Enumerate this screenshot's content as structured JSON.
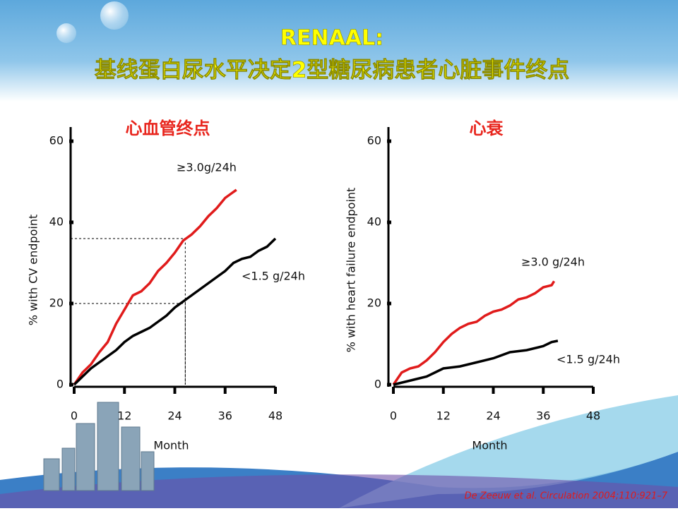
{
  "slide": {
    "title_line1": "RENAAL:",
    "title_line2": "基线蛋白尿水平决定2型糖尿病患者心脏事件终点",
    "citation": "De Zeeuw et al. Circulation 2004;110:921–7"
  },
  "chart_data": [
    {
      "type": "line",
      "title": "心血管终点",
      "x_label": "Month",
      "y_label": "% with CV endpoint",
      "xlim": [
        0,
        48
      ],
      "xticks": [
        0,
        12,
        24,
        36,
        48
      ],
      "ylim": [
        0,
        60
      ],
      "yticks": [
        0,
        20,
        40,
        60
      ],
      "guides": [
        {
          "x": 26.5,
          "y": 36
        },
        {
          "x": 26.5,
          "y": 20
        }
      ],
      "series": [
        {
          "name": "≥3.0g/24h",
          "color": "#e01b1b",
          "x": [
            0,
            2,
            4,
            6,
            8,
            10,
            12,
            14,
            16,
            18,
            20,
            22,
            24,
            26,
            28,
            30,
            32,
            34,
            36,
            38,
            38.7
          ],
          "values": [
            0,
            3,
            5,
            8,
            10.5,
            15,
            18.5,
            22,
            23,
            25,
            28,
            30,
            32.5,
            35.5,
            37,
            39,
            41.5,
            43.5,
            46,
            47.5,
            48
          ]
        },
        {
          "name": "<1.5 g/24h",
          "color": "#000000",
          "x": [
            0,
            2,
            4,
            6,
            8,
            10,
            12,
            14,
            16,
            18,
            20,
            22,
            24,
            26,
            28,
            30,
            32,
            34,
            36,
            38,
            40,
            42,
            44,
            46,
            48
          ],
          "values": [
            0,
            2,
            4,
            5.5,
            7,
            8.5,
            10.5,
            12,
            13,
            14,
            15.5,
            17,
            19,
            20.5,
            22,
            23.5,
            25,
            26.5,
            28,
            30,
            31,
            31.5,
            33,
            34,
            36
          ]
        }
      ]
    },
    {
      "type": "line",
      "title": "心衰",
      "x_label": "Month",
      "y_label": "% with heart failure endpoint",
      "xlim": [
        0,
        48
      ],
      "xticks": [
        0,
        12,
        24,
        36,
        48
      ],
      "ylim": [
        0,
        60
      ],
      "yticks": [
        0,
        20,
        40,
        60
      ],
      "series": [
        {
          "name": "≥3.0 g/24h",
          "color": "#e01b1b",
          "x": [
            0,
            2,
            4,
            6,
            8,
            10,
            12,
            14,
            16,
            18,
            20,
            22,
            24,
            26,
            28,
            30,
            32,
            34,
            36,
            38,
            38.6
          ],
          "values": [
            0,
            3,
            4,
            4.5,
            6,
            8,
            10.5,
            12.5,
            14,
            15,
            15.5,
            17,
            18,
            18.5,
            19.5,
            21,
            21.5,
            22.5,
            24,
            24.5,
            25.5
          ]
        },
        {
          "name": "<1.5 g/24h",
          "color": "#000000",
          "x": [
            0,
            4,
            8,
            12,
            16,
            20,
            24,
            28,
            32,
            36,
            38,
            39.5
          ],
          "values": [
            0,
            1,
            2,
            4,
            4.5,
            5.5,
            6.5,
            8,
            8.5,
            9.5,
            10.5,
            10.8
          ]
        }
      ]
    }
  ]
}
